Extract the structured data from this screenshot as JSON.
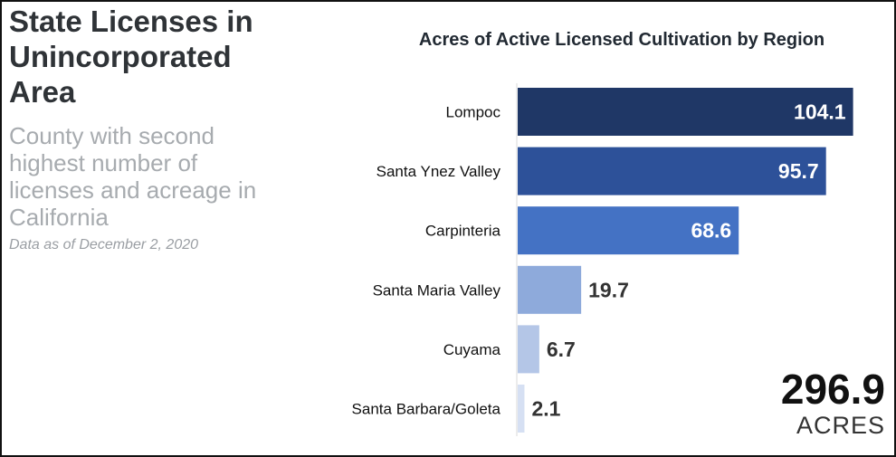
{
  "panel": {
    "title": "State Licenses in Unincorporated Area",
    "subtitle": "County with second highest number of licenses and acreage in California",
    "note": "Data as of December 2, 2020"
  },
  "total": {
    "value": "296.9",
    "unit": "ACRES"
  },
  "chart_data": {
    "type": "bar",
    "orientation": "horizontal",
    "title": "Acres of Active Licensed Cultivation by Region",
    "categories": [
      "Lompoc",
      "Santa Ynez Valley",
      "Carpinteria",
      "Santa Maria Valley",
      "Cuyama",
      "Santa Barbara/Goleta"
    ],
    "values": [
      104.1,
      95.7,
      68.6,
      19.7,
      6.7,
      2.1
    ],
    "colors": [
      "#1f3766",
      "#2d5199",
      "#4472c4",
      "#8eaadb",
      "#b4c6e7",
      "#d6e0f3"
    ],
    "label_colors": [
      "#ffffff",
      "#ffffff",
      "#ffffff",
      "#333333",
      "#333333",
      "#333333"
    ],
    "xlim": [
      0,
      110
    ],
    "grid": false,
    "legend": "none"
  }
}
